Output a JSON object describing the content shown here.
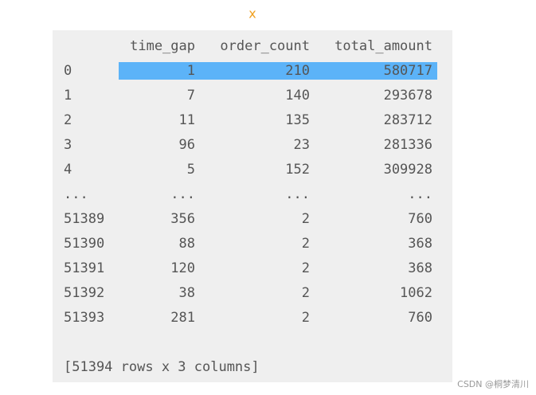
{
  "header": {
    "title": "x"
  },
  "table": {
    "columns": [
      "time_gap",
      "order_count",
      "total_amount"
    ],
    "rows": [
      [
        "0",
        "1",
        "210",
        "580717"
      ],
      [
        "1",
        "7",
        "140",
        "293678"
      ],
      [
        "2",
        "11",
        "135",
        "283712"
      ],
      [
        "3",
        "96",
        "23",
        "281336"
      ],
      [
        "4",
        "5",
        "152",
        "309928"
      ],
      [
        "...",
        "...",
        "...",
        "..."
      ],
      [
        "51389",
        "356",
        "2",
        "760"
      ],
      [
        "51390",
        "88",
        "2",
        "368"
      ],
      [
        "51391",
        "120",
        "2",
        "368"
      ],
      [
        "51392",
        "38",
        "2",
        "1062"
      ],
      [
        "51393",
        "281",
        "2",
        "760"
      ]
    ],
    "footer": "[51394 rows x 3 columns]"
  },
  "watermark": "CSDN @桐梦清川"
}
